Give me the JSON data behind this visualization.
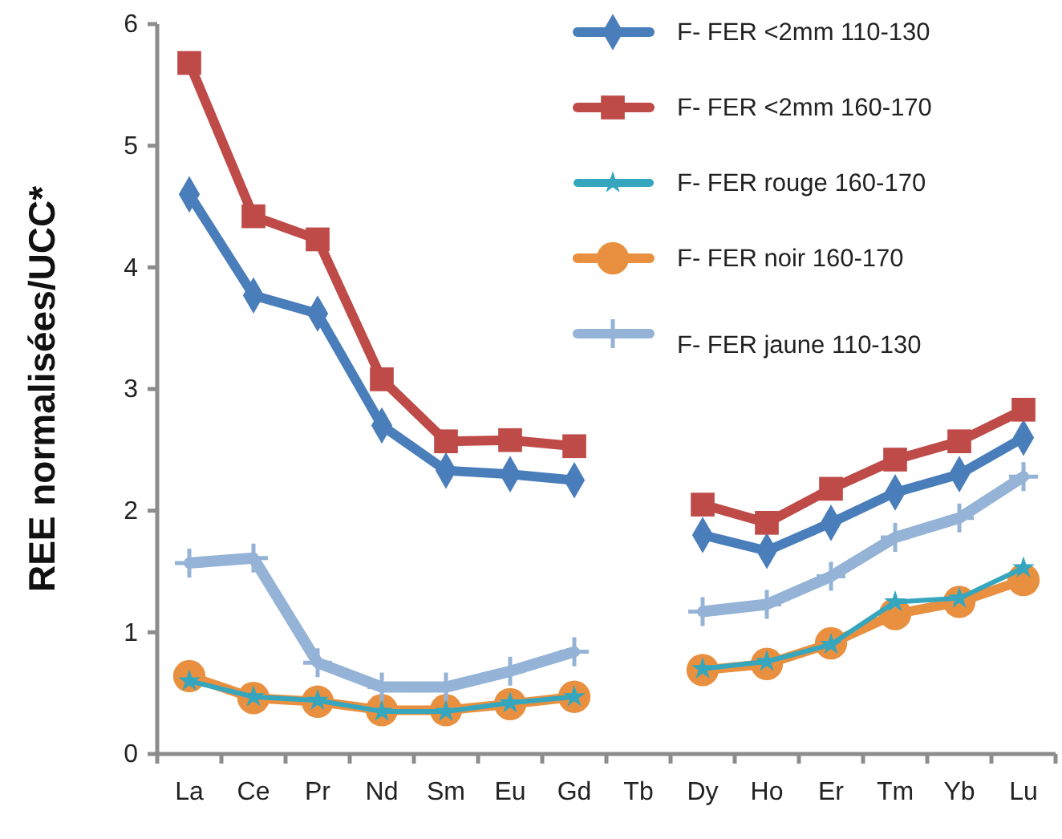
{
  "chart_data": {
    "type": "line",
    "ylabel": "REE normalisées/UCC*",
    "categories": [
      "La",
      "Ce",
      "Pr",
      "Nd",
      "Sm",
      "Eu",
      "Gd",
      "Tb",
      "Dy",
      "Ho",
      "Er",
      "Tm",
      "Yb",
      "Lu"
    ],
    "ylim": [
      0,
      6
    ],
    "yticks": [
      0,
      1,
      2,
      3,
      4,
      5,
      6
    ],
    "grid": false,
    "legend": "top right",
    "series": [
      {
        "name": "F- FER <2mm 110-130",
        "color": "#4a7ebb",
        "marker": "diamond",
        "values": [
          4.6,
          3.77,
          3.62,
          2.7,
          2.33,
          2.3,
          2.25,
          null,
          1.8,
          1.67,
          1.9,
          2.15,
          2.3,
          2.6
        ]
      },
      {
        "name": "F- FER <2mm 160-170",
        "color": "#be4b48",
        "marker": "square",
        "values": [
          5.68,
          4.42,
          4.23,
          3.08,
          2.57,
          2.58,
          2.53,
          null,
          2.05,
          1.9,
          2.18,
          2.42,
          2.57,
          2.83
        ]
      },
      {
        "name": "F- FER rouge 160-170",
        "color": "#35a6bd",
        "marker": "star",
        "values": [
          0.6,
          0.47,
          0.44,
          0.35,
          0.35,
          0.42,
          0.47,
          null,
          0.7,
          0.76,
          0.9,
          1.25,
          1.28,
          1.53
        ]
      },
      {
        "name": "F- FER noir 160-170",
        "color": "#e8903f",
        "marker": "circle",
        "values": [
          0.64,
          0.46,
          0.43,
          0.36,
          0.36,
          0.41,
          0.47,
          null,
          0.69,
          0.74,
          0.91,
          1.15,
          1.25,
          1.43
        ]
      },
      {
        "name": "F- FER jaune 110-130",
        "color": "#94b3d7",
        "marker": "cross",
        "values": [
          1.57,
          1.61,
          0.75,
          0.55,
          0.55,
          0.68,
          0.84,
          null,
          1.17,
          1.23,
          1.46,
          1.78,
          1.94,
          2.28
        ]
      }
    ]
  }
}
